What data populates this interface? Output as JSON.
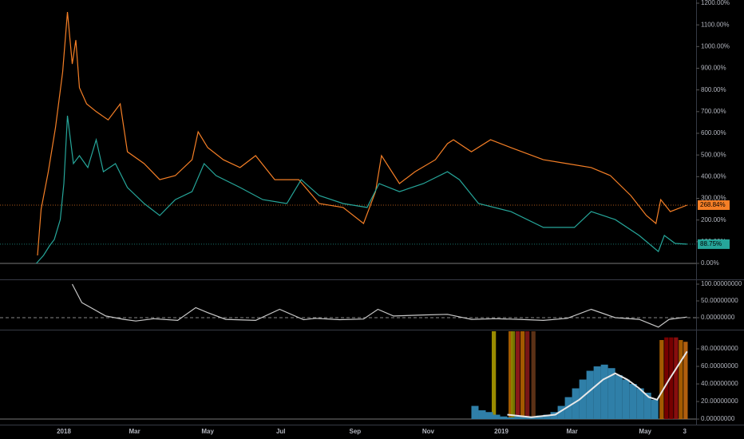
{
  "chart_data": [
    {
      "type": "line",
      "xlim": [
        -53.28,
        527.5
      ],
      "ylim": [
        -73.6,
        1214.7
      ],
      "yticks": [
        {
          "value": 0,
          "label": "0.00%"
        },
        {
          "value": 100,
          "label": "100.00%"
        },
        {
          "value": 200,
          "label": "200.00%"
        },
        {
          "value": 300,
          "label": "300.00%"
        },
        {
          "value": 400,
          "label": "400.00%"
        },
        {
          "value": 500,
          "label": "500.00%"
        },
        {
          "value": 600,
          "label": "600.00%"
        },
        {
          "value": 700,
          "label": "700.00%"
        },
        {
          "value": 800,
          "label": "800.00%"
        },
        {
          "value": 900,
          "label": "900.00%"
        },
        {
          "value": 1000,
          "label": "1000.00%"
        },
        {
          "value": 1100,
          "label": "1100.00%"
        },
        {
          "value": 1200,
          "label": "1200.00%"
        }
      ],
      "series": [
        {
          "color": "#f57f26",
          "last_label": "268.84%",
          "x": [
            -22,
            -19,
            -13,
            -7,
            -1,
            3,
            7,
            10,
            13,
            19,
            27,
            37,
            47,
            53,
            67,
            80,
            93,
            107,
            112,
            120,
            133,
            147,
            160,
            176,
            196,
            213,
            233,
            250,
            260,
            265,
            280,
            293,
            310,
            320,
            325,
            340,
            356,
            373,
            400,
            420,
            440,
            456,
            473,
            486,
            494,
            498,
            506,
            520
          ],
          "values": [
            37,
            250,
            423,
            626,
            883,
            1159,
            920,
            1030,
            810,
            736,
            700,
            662,
            736,
            515,
            460,
            386,
            405,
            478,
            607,
            534,
            478,
            442,
            497,
            386,
            386,
            276,
            258,
            184,
            331,
            497,
            368,
            423,
            478,
            552,
            570,
            515,
            570,
            534,
            478,
            460,
            442,
            405,
            313,
            221,
            184,
            294,
            239,
            268.84
          ]
        },
        {
          "color": "#26a69a",
          "last_label": "88.75%",
          "x": [
            -23,
            -17,
            -12,
            -8,
            -3,
            0,
            3,
            8,
            13,
            20,
            27,
            33,
            43,
            53,
            67,
            80,
            93,
            107,
            117,
            127,
            147,
            166,
            186,
            198,
            213,
            233,
            253,
            263,
            280,
            300,
            320,
            330,
            346,
            373,
            400,
            426,
            440,
            460,
            480,
            496,
            501,
            510,
            520
          ],
          "values": [
            0,
            37,
            81,
            110,
            202,
            368,
            681,
            460,
            497,
            442,
            570,
            423,
            460,
            350,
            276,
            221,
            294,
            331,
            460,
            405,
            350,
            294,
            276,
            386,
            313,
            276,
            258,
            368,
            331,
            368,
            423,
            386,
            276,
            239,
            166,
            166,
            239,
            202,
            129,
            55,
            129,
            92,
            88.75
          ]
        }
      ]
    },
    {
      "type": "line",
      "xlim": [
        -53.28,
        527.5
      ],
      "ylim": [
        -33.3,
        109.5
      ],
      "yticks": [
        {
          "value": 0,
          "label": "0.00000000"
        },
        {
          "value": 50,
          "label": "50.00000000"
        },
        {
          "value": 100,
          "label": "100.00000000"
        }
      ],
      "series": [
        {
          "color": "#c8c8c8",
          "x": [
            7,
            15,
            25,
            35,
            50,
            60,
            75,
            95,
            110,
            120,
            135,
            160,
            180,
            200,
            210,
            230,
            250,
            262,
            275,
            300,
            320,
            340,
            360,
            380,
            400,
            420,
            440,
            460,
            480,
            496,
            505,
            520
          ],
          "values": [
            100,
            45,
            25,
            5,
            -5,
            -10,
            -3,
            -8,
            30,
            15,
            -5,
            -8,
            25,
            -6,
            -2,
            -6,
            -4,
            25,
            5,
            8,
            10,
            -5,
            -3,
            -5,
            -8,
            -2,
            25,
            0,
            -5,
            -28,
            -5,
            2
          ]
        }
      ]
    },
    {
      "type": "combo",
      "xlim": [
        -53.28,
        527.5
      ],
      "ylim": [
        -4.5,
        100
      ],
      "yticks": [
        {
          "value": 0,
          "label": "0.00000000"
        },
        {
          "value": 20,
          "label": "20.00000000"
        },
        {
          "value": 40,
          "label": "40.00000000"
        },
        {
          "value": 60,
          "label": "60.00000000"
        },
        {
          "value": 80,
          "label": "80.00000000"
        }
      ],
      "xticks": [
        {
          "value": 0,
          "label": "2018"
        },
        {
          "value": 59,
          "label": "Mar"
        },
        {
          "value": 120,
          "label": "May"
        },
        {
          "value": 181,
          "label": "Jul"
        },
        {
          "value": 243,
          "label": "Sep"
        },
        {
          "value": 304,
          "label": "Nov"
        },
        {
          "value": 365,
          "label": "2019"
        },
        {
          "value": 424,
          "label": "Mar"
        },
        {
          "value": 485,
          "label": "May"
        },
        {
          "value": 518,
          "label": "3"
        }
      ],
      "bands": {
        "x": [
          357,
          371,
          373,
          377,
          381,
          385,
          390,
          497,
          501,
          505,
          509,
          513,
          517
        ],
        "values": [
          100,
          100,
          100,
          100,
          100,
          100,
          100,
          90,
          93,
          93,
          93,
          90,
          88
        ],
        "colors": [
          "#b5a300",
          "#c06a00",
          "#8a8a00",
          "#a31d1d",
          "#c06a00",
          "#8b1a1a",
          "#6b3a1a",
          "#c06a00",
          "#8b0000",
          "#8b0000",
          "#a01010",
          "#c06a00",
          "#d07010"
        ]
      },
      "bars": {
        "color": "#2f7fa8",
        "x": [
          340,
          346,
          352,
          358,
          364,
          370,
          376,
          382,
          388,
          394,
          400,
          406,
          412,
          418,
          424,
          430,
          436,
          442,
          448,
          454,
          460,
          466,
          472,
          478,
          484,
          490
        ],
        "values": [
          15,
          10,
          8,
          5,
          3,
          2,
          3,
          2,
          3,
          4,
          5,
          8,
          15,
          25,
          35,
          45,
          55,
          60,
          62,
          58,
          50,
          45,
          40,
          35,
          30,
          22
        ]
      },
      "series": [
        {
          "color": "#e8e8e8",
          "x": [
            370,
            390,
            410,
            430,
            450,
            460,
            470,
            480,
            488,
            495,
            505,
            520
          ],
          "values": [
            5,
            2,
            5,
            22,
            45,
            52,
            45,
            35,
            25,
            22,
            45,
            77
          ]
        }
      ]
    }
  ]
}
